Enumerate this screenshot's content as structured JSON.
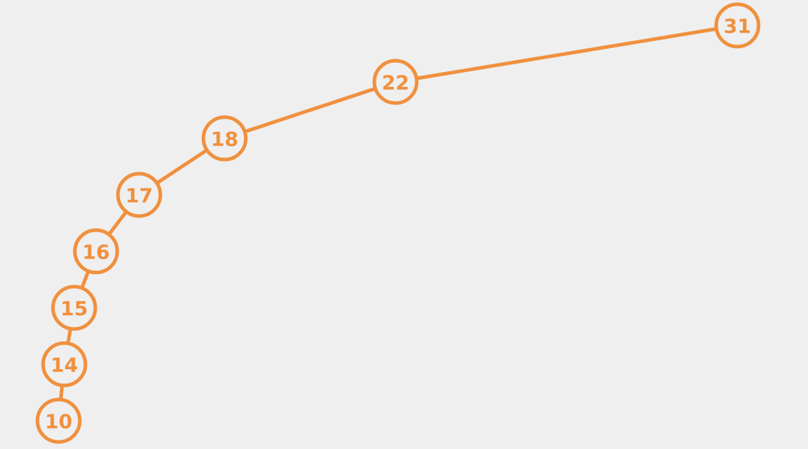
{
  "diagram": {
    "type": "linked-chain",
    "accent_color": "#f0903e",
    "background_color": "#efefef",
    "nodes": [
      {
        "label": "10"
      },
      {
        "label": "14"
      },
      {
        "label": "15"
      },
      {
        "label": "16"
      },
      {
        "label": "17"
      },
      {
        "label": "18"
      },
      {
        "label": "22"
      },
      {
        "label": "31"
      }
    ]
  }
}
